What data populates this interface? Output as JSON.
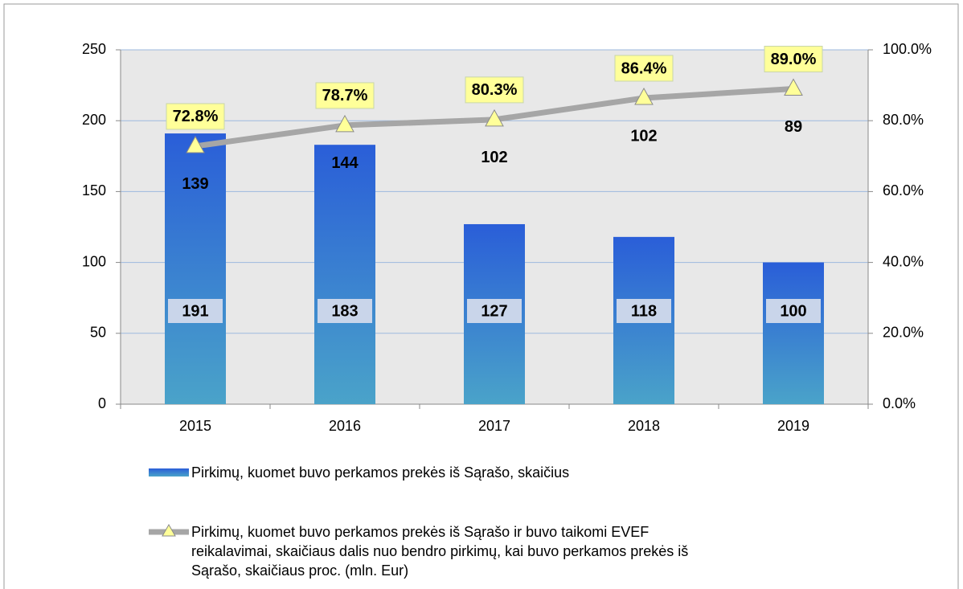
{
  "chart_data": {
    "type": "combo",
    "categories": [
      "2015",
      "2016",
      "2017",
      "2018",
      "2019"
    ],
    "series": [
      {
        "name": "Pirkimų, kuomet buvo perkamos prekės iš Sąrašo, skaičius",
        "type": "bar",
        "color": "#2b62d8",
        "values": [
          191,
          183,
          127,
          118,
          100
        ]
      },
      {
        "name": "Pirkimų, kuomet buvo perkamos prekės iš Sąrašo ir buvo taikomi EVEF reikalavimai, skaičiaus dalis nuo bendro pirkimų, kai buvo perkamos prekės iš Sąrašo, skaičiaus proc. (mln. Eur)",
        "type": "line",
        "axis": "y2",
        "color": "#a6a6a6",
        "values": [
          72.8,
          78.7,
          80.3,
          86.4,
          89.0
        ],
        "value_labels": [
          "72.8%",
          "78.7%",
          "80.3%",
          "86.4%",
          "89.0%"
        ]
      }
    ],
    "annotations": [
      139,
      144,
      102,
      102,
      89
    ],
    "ylim": [
      0,
      250
    ],
    "yticks": [
      0,
      50,
      100,
      150,
      200,
      250
    ],
    "y2lim": [
      0,
      100
    ],
    "y2ticks": [
      {
        "value": 0,
        "label": "0.0%"
      },
      {
        "value": 20,
        "label": "20.0%"
      },
      {
        "value": 40,
        "label": "40.0%"
      },
      {
        "value": 60,
        "label": "60.0%"
      },
      {
        "value": 80,
        "label": "80.0%"
      },
      {
        "value": 100,
        "label": "100.0%"
      }
    ],
    "grid": true,
    "legend": "bottom"
  }
}
